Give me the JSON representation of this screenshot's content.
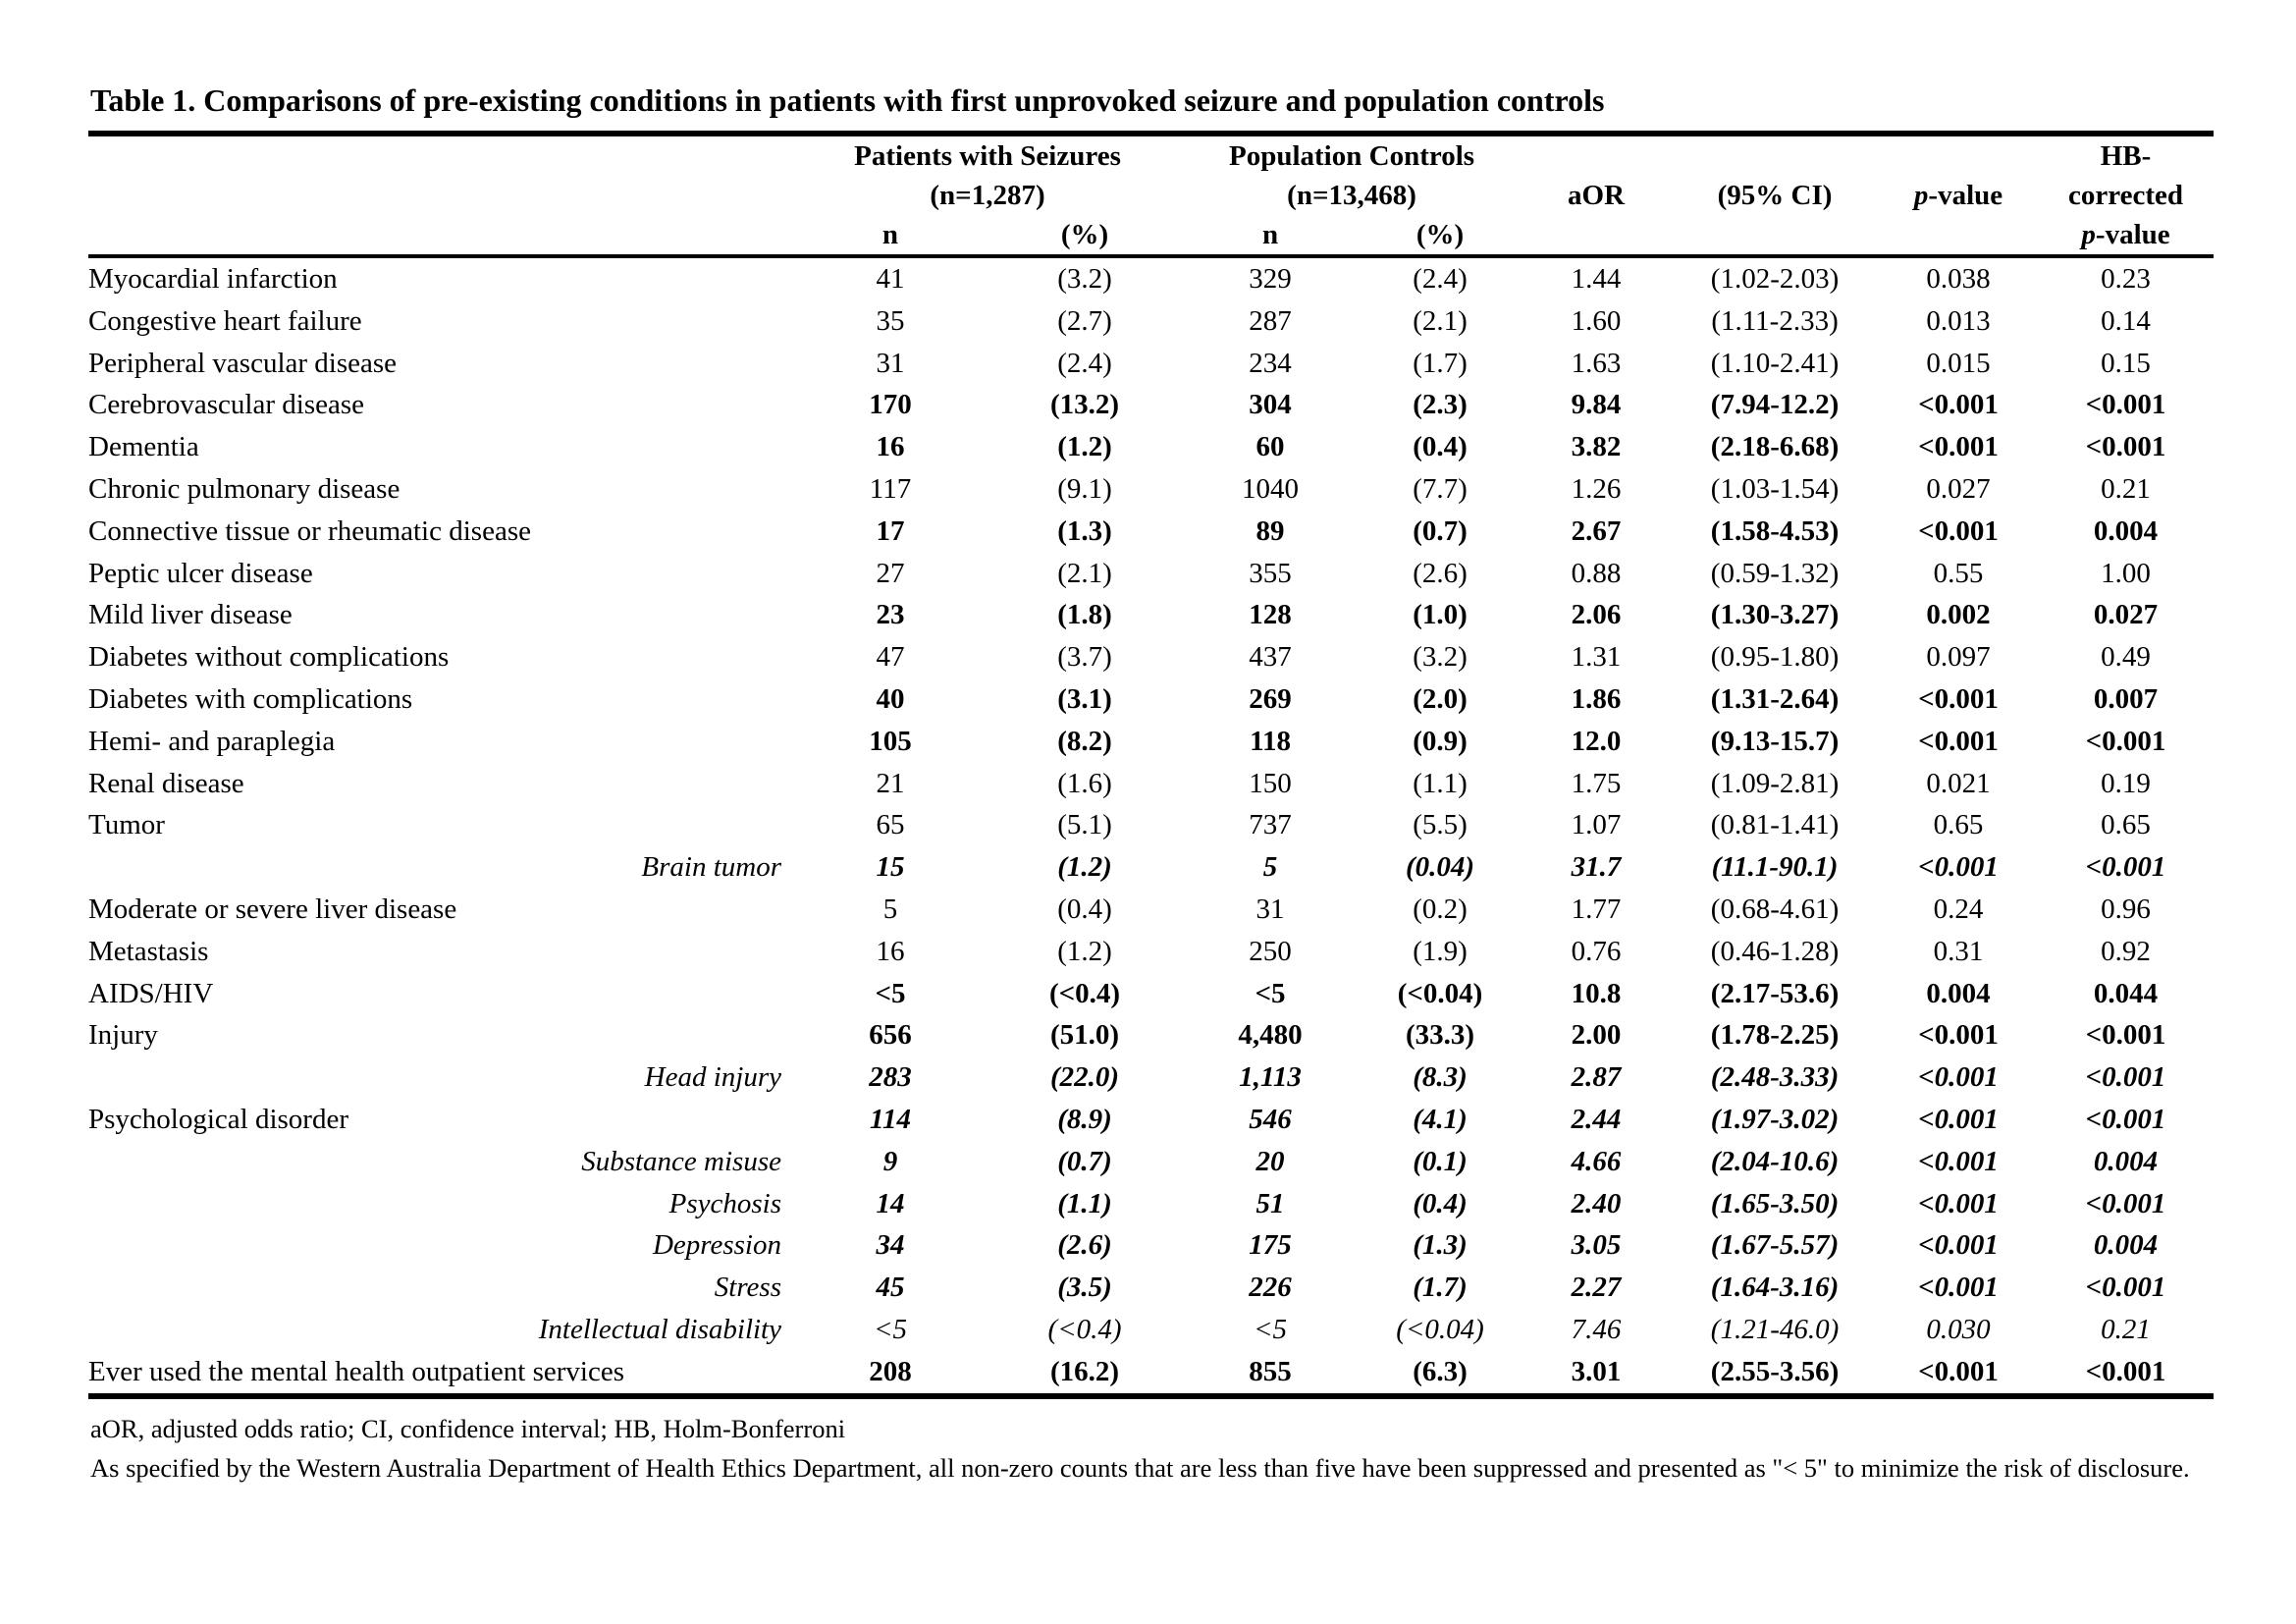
{
  "page": {
    "background": "#ffffff",
    "text_color": "#000000",
    "rule_color": "#000000"
  },
  "table": {
    "title": "Table 1. Comparisons of pre-existing conditions in patients with first unprovoked seizure and population controls",
    "header": {
      "seizures_group": "Patients with Seizures",
      "seizures_total": "(n=1,287)",
      "controls_group": "Population Controls",
      "controls_total": "(n=13,468)",
      "n_label": "n",
      "pct_label": "(%)",
      "aor": "aOR",
      "ci": "(95% CI)",
      "p_italic": "p",
      "p_suffix": "-value",
      "hb_line1": "HB-",
      "hb_line2": "corrected"
    },
    "rows": [
      {
        "label": "Myocardial infarction",
        "indent": false,
        "vb": false,
        "vi": false,
        "cells": [
          "41",
          "(3.2)",
          "329",
          "(2.4)",
          "1.44",
          "(1.02-2.03)",
          "0.038",
          "0.23"
        ]
      },
      {
        "label": "Congestive heart failure",
        "indent": false,
        "vb": false,
        "vi": false,
        "cells": [
          "35",
          "(2.7)",
          "287",
          "(2.1)",
          "1.60",
          "(1.11-2.33)",
          "0.013",
          "0.14"
        ]
      },
      {
        "label": "Peripheral vascular disease",
        "indent": false,
        "vb": false,
        "vi": false,
        "cells": [
          "31",
          "(2.4)",
          "234",
          "(1.7)",
          "1.63",
          "(1.10-2.41)",
          "0.015",
          "0.15"
        ]
      },
      {
        "label": "Cerebrovascular disease",
        "indent": false,
        "vb": true,
        "vi": false,
        "cells": [
          "170",
          "(13.2)",
          "304",
          "(2.3)",
          "9.84",
          "(7.94-12.2)",
          "<0.001",
          "<0.001"
        ]
      },
      {
        "label": "Dementia",
        "indent": false,
        "vb": true,
        "vi": false,
        "cells": [
          "16",
          "(1.2)",
          "60",
          "(0.4)",
          "3.82",
          "(2.18-6.68)",
          "<0.001",
          "<0.001"
        ]
      },
      {
        "label": "Chronic pulmonary disease",
        "indent": false,
        "vb": false,
        "vi": false,
        "cells": [
          "117",
          "(9.1)",
          "1040",
          "(7.7)",
          "1.26",
          "(1.03-1.54)",
          "0.027",
          "0.21"
        ]
      },
      {
        "label": "Connective tissue or rheumatic disease",
        "indent": false,
        "vb": true,
        "vi": false,
        "cells": [
          "17",
          "(1.3)",
          "89",
          "(0.7)",
          "2.67",
          "(1.58-4.53)",
          "<0.001",
          "0.004"
        ]
      },
      {
        "label": "Peptic ulcer disease",
        "indent": false,
        "vb": false,
        "vi": false,
        "cells": [
          "27",
          "(2.1)",
          "355",
          "(2.6)",
          "0.88",
          "(0.59-1.32)",
          "0.55",
          "1.00"
        ]
      },
      {
        "label": "Mild liver disease",
        "indent": false,
        "vb": true,
        "vi": false,
        "cells": [
          "23",
          "(1.8)",
          "128",
          "(1.0)",
          "2.06",
          "(1.30-3.27)",
          "0.002",
          "0.027"
        ]
      },
      {
        "label": "Diabetes without complications",
        "indent": false,
        "vb": false,
        "vi": false,
        "cells": [
          "47",
          "(3.7)",
          "437",
          "(3.2)",
          "1.31",
          "(0.95-1.80)",
          "0.097",
          "0.49"
        ]
      },
      {
        "label": "Diabetes with complications",
        "indent": false,
        "vb": true,
        "vi": false,
        "cells": [
          "40",
          "(3.1)",
          "269",
          "(2.0)",
          "1.86",
          "(1.31-2.64)",
          "<0.001",
          "0.007"
        ]
      },
      {
        "label": "Hemi- and paraplegia",
        "indent": false,
        "vb": true,
        "vi": false,
        "cells": [
          "105",
          "(8.2)",
          "118",
          "(0.9)",
          "12.0",
          "(9.13-15.7)",
          "<0.001",
          "<0.001"
        ]
      },
      {
        "label": "Renal disease",
        "indent": false,
        "vb": false,
        "vi": false,
        "cells": [
          "21",
          "(1.6)",
          "150",
          "(1.1)",
          "1.75",
          "(1.09-2.81)",
          "0.021",
          "0.19"
        ]
      },
      {
        "label": "Tumor",
        "indent": false,
        "vb": false,
        "vi": false,
        "cells": [
          "65",
          "(5.1)",
          "737",
          "(5.5)",
          "1.07",
          "(0.81-1.41)",
          "0.65",
          "0.65"
        ]
      },
      {
        "label": "Brain tumor",
        "indent": true,
        "vb": true,
        "vi": true,
        "cells": [
          "15",
          "(1.2)",
          "5",
          "(0.04)",
          "31.7",
          "(11.1-90.1)",
          "<0.001",
          "<0.001"
        ]
      },
      {
        "label": "Moderate or severe liver disease",
        "indent": false,
        "vb": false,
        "vi": false,
        "cells": [
          "5",
          "(0.4)",
          "31",
          "(0.2)",
          "1.77",
          "(0.68-4.61)",
          "0.24",
          "0.96"
        ]
      },
      {
        "label": "Metastasis",
        "indent": false,
        "vb": false,
        "vi": false,
        "cells": [
          "16",
          "(1.2)",
          "250",
          "(1.9)",
          "0.76",
          "(0.46-1.28)",
          "0.31",
          "0.92"
        ]
      },
      {
        "label": "AIDS/HIV",
        "indent": false,
        "vb": true,
        "vi": false,
        "cells": [
          "<5",
          "(<0.4)",
          "<5",
          "(<0.04)",
          "10.8",
          "(2.17-53.6)",
          "0.004",
          "0.044"
        ]
      },
      {
        "label": "Injury",
        "indent": false,
        "vb": true,
        "vi": false,
        "cells": [
          "656",
          "(51.0)",
          "4,480",
          "(33.3)",
          "2.00",
          "(1.78-2.25)",
          "<0.001",
          "<0.001"
        ]
      },
      {
        "label": "Head injury",
        "indent": true,
        "vb": true,
        "vi": true,
        "cells": [
          "283",
          "(22.0)",
          "1,113",
          "(8.3)",
          "2.87",
          "(2.48-3.33)",
          "<0.001",
          "<0.001"
        ]
      },
      {
        "label": "Psychological disorder",
        "indent": false,
        "vb": true,
        "vi": true,
        "cells": [
          "114",
          "(8.9)",
          "546",
          "(4.1)",
          "2.44",
          "(1.97-3.02)",
          "<0.001",
          "<0.001"
        ]
      },
      {
        "label": "Substance misuse",
        "indent": true,
        "vb": true,
        "vi": true,
        "cells": [
          "9",
          "(0.7)",
          "20",
          "(0.1)",
          "4.66",
          "(2.04-10.6)",
          "<0.001",
          "0.004"
        ]
      },
      {
        "label": "Psychosis",
        "indent": true,
        "vb": true,
        "vi": true,
        "cells": [
          "14",
          "(1.1)",
          "51",
          "(0.4)",
          "2.40",
          "(1.65-3.50)",
          "<0.001",
          "<0.001"
        ]
      },
      {
        "label": "Depression",
        "indent": true,
        "vb": true,
        "vi": true,
        "cells": [
          "34",
          "(2.6)",
          "175",
          "(1.3)",
          "3.05",
          "(1.67-5.57)",
          "<0.001",
          "0.004"
        ]
      },
      {
        "label": "Stress",
        "indent": true,
        "vb": true,
        "vi": true,
        "cells": [
          "45",
          "(3.5)",
          "226",
          "(1.7)",
          "2.27",
          "(1.64-3.16)",
          "<0.001",
          "<0.001"
        ]
      },
      {
        "label": "Intellectual disability",
        "indent": true,
        "vb": false,
        "vi": true,
        "cells": [
          "<5",
          "(<0.4)",
          "<5",
          "(<0.04)",
          "7.46",
          "(1.21-46.0)",
          "0.030",
          "0.21"
        ]
      },
      {
        "label": "Ever used the mental health outpatient services",
        "indent": false,
        "vb": true,
        "vi": false,
        "cells": [
          "208",
          "(16.2)",
          "855",
          "(6.3)",
          "3.01",
          "(2.55-3.56)",
          "<0.001",
          "<0.001"
        ]
      }
    ],
    "footnotes": {
      "abbreviations": "aOR, adjusted odds ratio; CI, confidence interval; HB, Holm-Bonferroni",
      "suppression_note": "As specified by the Western Australia Department of Health Ethics Department, all non-zero counts that are less than five have been suppressed and presented as \"< 5\" to minimize the risk of disclosure."
    }
  }
}
